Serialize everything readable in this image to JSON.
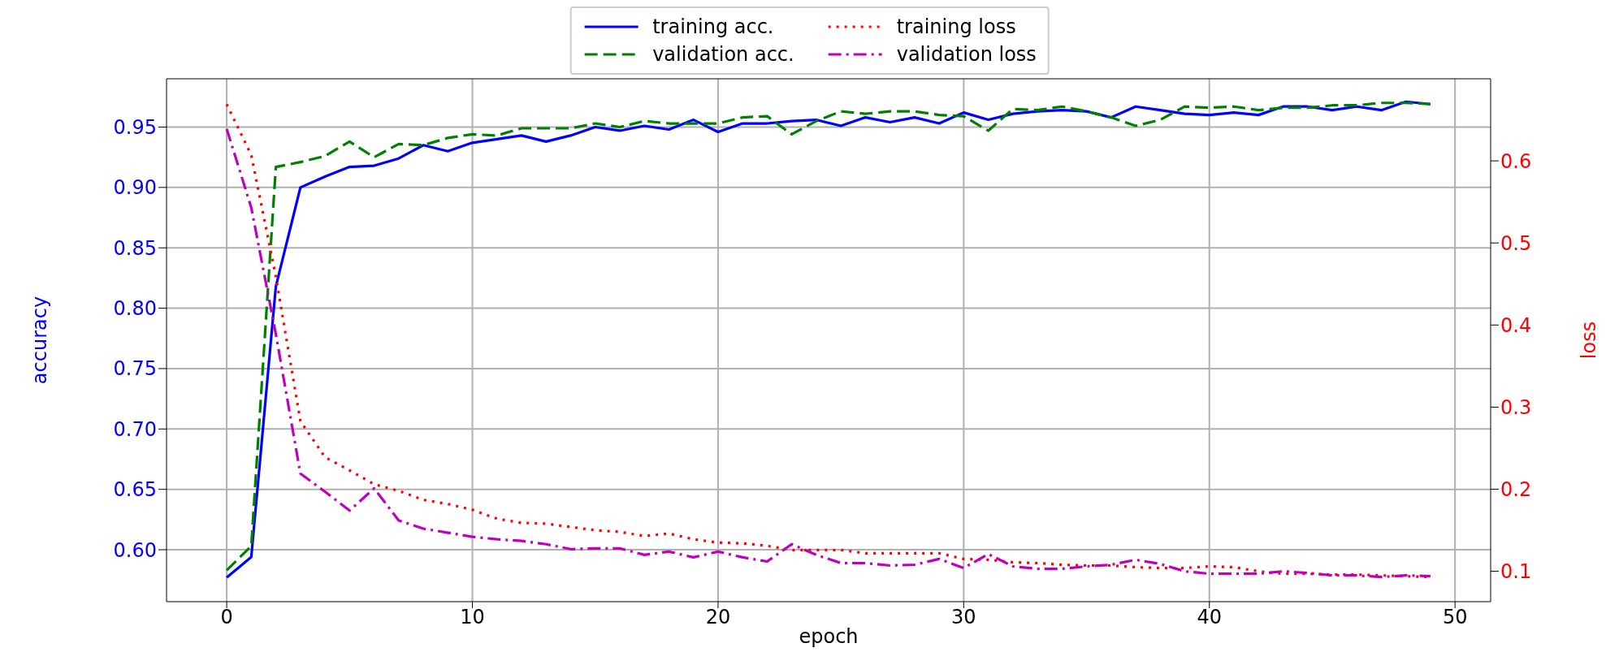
{
  "chart_data": {
    "type": "line",
    "xlabel": "epoch",
    "ylabel": "accuracy",
    "y2label": "loss",
    "x": [
      0,
      1,
      2,
      3,
      4,
      5,
      6,
      7,
      8,
      9,
      10,
      11,
      12,
      13,
      14,
      15,
      16,
      17,
      18,
      19,
      20,
      21,
      22,
      23,
      24,
      25,
      26,
      27,
      28,
      29,
      30,
      31,
      32,
      33,
      34,
      35,
      36,
      37,
      38,
      39,
      40,
      41,
      42,
      43,
      44,
      45,
      46,
      47,
      48,
      49
    ],
    "series": [
      {
        "name": "training acc.",
        "color": "#0000ff",
        "line_style": "solid",
        "values": [
          0.577,
          0.594,
          0.818,
          0.9,
          0.909,
          0.917,
          0.918,
          0.924,
          0.935,
          0.93,
          0.937,
          0.94,
          0.943,
          0.938,
          0.943,
          0.95,
          0.947,
          0.951,
          0.948,
          0.956,
          0.946,
          0.953,
          0.953,
          0.955,
          0.956,
          0.951,
          0.958,
          0.954,
          0.958,
          0.953,
          0.962,
          0.956,
          0.961,
          0.963,
          0.964,
          0.963,
          0.958,
          0.967,
          0.964,
          0.961,
          0.96,
          0.962,
          0.96,
          0.967,
          0.967,
          0.964,
          0.967,
          0.964,
          0.971,
          0.969
        ]
      },
      {
        "name": "validation acc.",
        "color": "#008000",
        "line_style": "dashed",
        "values": [
          0.583,
          0.603,
          0.917,
          0.921,
          0.926,
          0.938,
          0.925,
          0.936,
          0.935,
          0.941,
          0.944,
          0.943,
          0.949,
          0.949,
          0.949,
          0.953,
          0.95,
          0.955,
          0.953,
          0.953,
          0.953,
          0.958,
          0.959,
          0.944,
          0.955,
          0.963,
          0.961,
          0.963,
          0.963,
          0.96,
          0.959,
          0.947,
          0.965,
          0.964,
          0.967,
          0.963,
          0.958,
          0.951,
          0.956,
          0.967,
          0.966,
          0.967,
          0.964,
          0.966,
          0.966,
          0.968,
          0.968,
          0.97,
          0.97,
          0.969
        ]
      },
      {
        "name": "training loss",
        "color": "#ff0000",
        "line_style": "dotted",
        "axis": "y2",
        "values": [
          0.669,
          0.607,
          0.459,
          0.283,
          0.239,
          0.223,
          0.206,
          0.198,
          0.187,
          0.182,
          0.175,
          0.164,
          0.159,
          0.158,
          0.154,
          0.15,
          0.148,
          0.143,
          0.146,
          0.139,
          0.135,
          0.134,
          0.131,
          0.126,
          0.126,
          0.126,
          0.122,
          0.122,
          0.122,
          0.122,
          0.115,
          0.114,
          0.111,
          0.11,
          0.108,
          0.107,
          0.107,
          0.105,
          0.104,
          0.104,
          0.106,
          0.105,
          0.1,
          0.097,
          0.097,
          0.096,
          0.096,
          0.095,
          0.094,
          0.093
        ]
      },
      {
        "name": "validation loss",
        "color": "#bf00bf",
        "line_style": "dashdot",
        "axis": "y2",
        "values": [
          0.639,
          0.543,
          0.389,
          0.219,
          0.197,
          0.174,
          0.201,
          0.162,
          0.152,
          0.147,
          0.142,
          0.139,
          0.137,
          0.133,
          0.127,
          0.128,
          0.128,
          0.12,
          0.124,
          0.117,
          0.124,
          0.117,
          0.112,
          0.133,
          0.12,
          0.11,
          0.11,
          0.107,
          0.108,
          0.115,
          0.104,
          0.121,
          0.106,
          0.103,
          0.103,
          0.106,
          0.108,
          0.114,
          0.109,
          0.1,
          0.097,
          0.097,
          0.097,
          0.1,
          0.098,
          0.095,
          0.095,
          0.093,
          0.095,
          0.094
        ]
      }
    ],
    "xlim": [
      -2.45,
      51.45
    ],
    "xticks": [
      0,
      10,
      20,
      30,
      40,
      50
    ],
    "ylim": [
      0.557,
      0.99
    ],
    "yticks": [
      {
        "value": 0.6,
        "label": "0.60"
      },
      0.65,
      {
        "value": 0.7,
        "label": "0.70"
      },
      0.75,
      {
        "value": 0.8,
        "label": "0.80"
      },
      0.85,
      {
        "value": 0.9,
        "label": "0.90"
      },
      0.95
    ],
    "y2lim": [
      0.063,
      0.7
    ],
    "y2ticks": [
      0.1,
      0.2,
      0.3,
      0.4,
      0.5,
      0.6
    ],
    "grid": true,
    "legend": "top",
    "marker": "none"
  }
}
